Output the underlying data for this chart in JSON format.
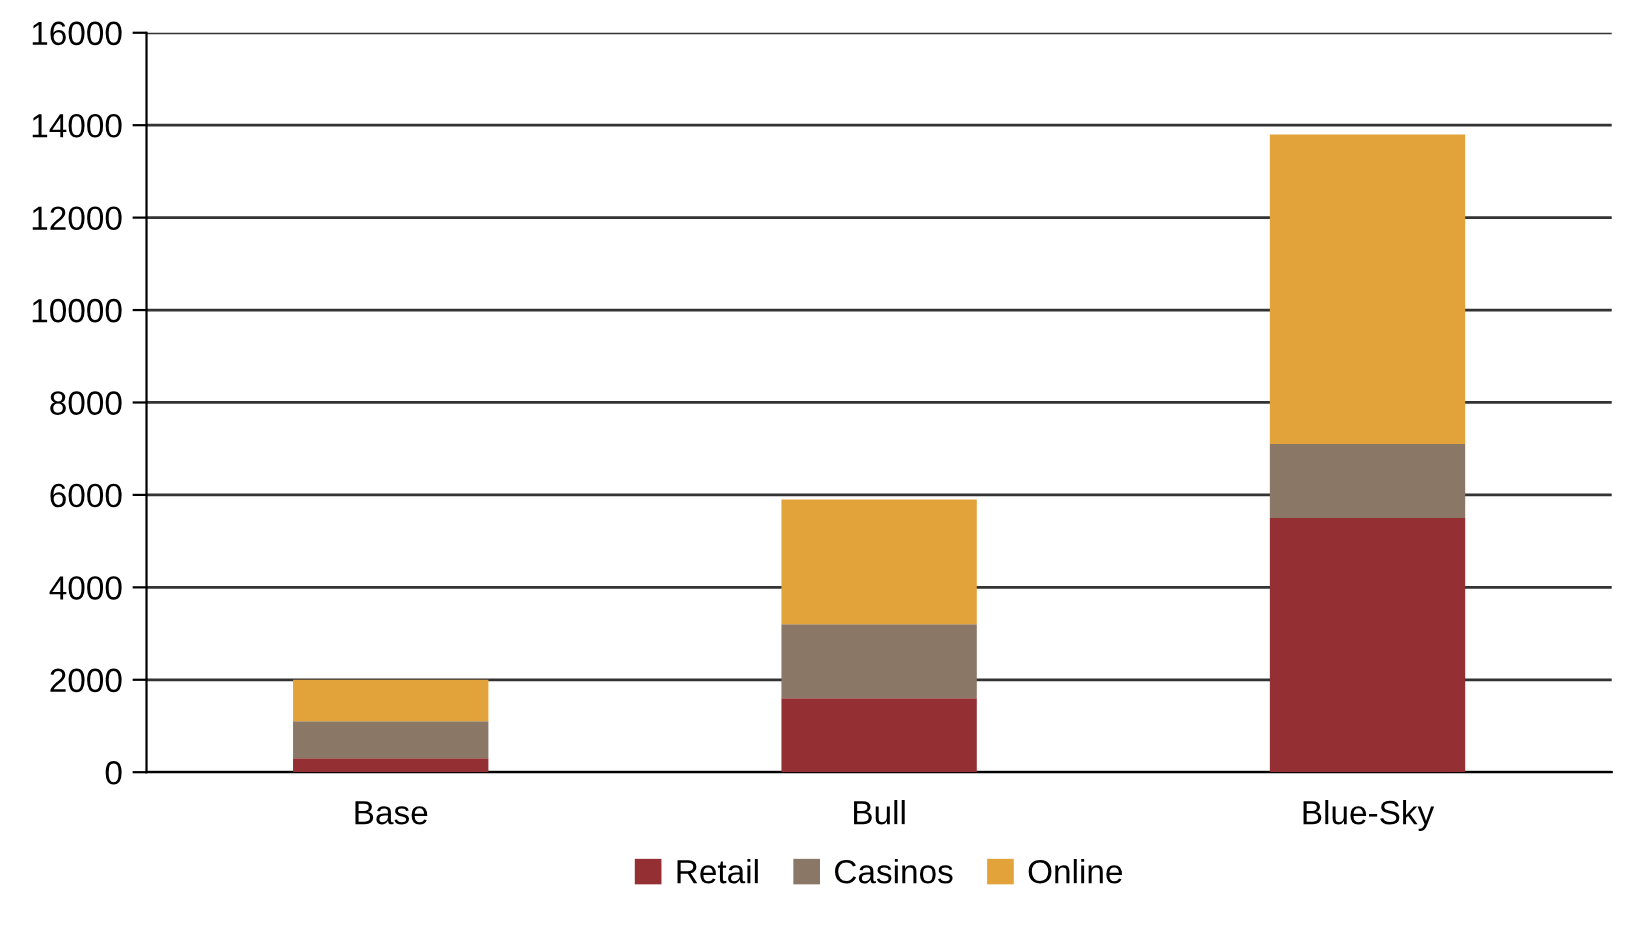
{
  "chart_data": {
    "type": "bar",
    "stacked": true,
    "categories": [
      "Base",
      "Bull",
      "Blue-Sky"
    ],
    "series": [
      {
        "name": "Retail",
        "color": "#943034",
        "values": [
          300,
          1600,
          5500
        ]
      },
      {
        "name": "Casinos",
        "color": "#8a7766",
        "values": [
          800,
          1600,
          1600
        ]
      },
      {
        "name": "Online",
        "color": "#e2a43a",
        "values": [
          900,
          2700,
          6700
        ]
      }
    ],
    "ylim": [
      0,
      16000
    ],
    "yticks": [
      0,
      2000,
      4000,
      6000,
      8000,
      10000,
      12000,
      14000,
      16000
    ],
    "grid": "y",
    "legend": "bottom"
  }
}
